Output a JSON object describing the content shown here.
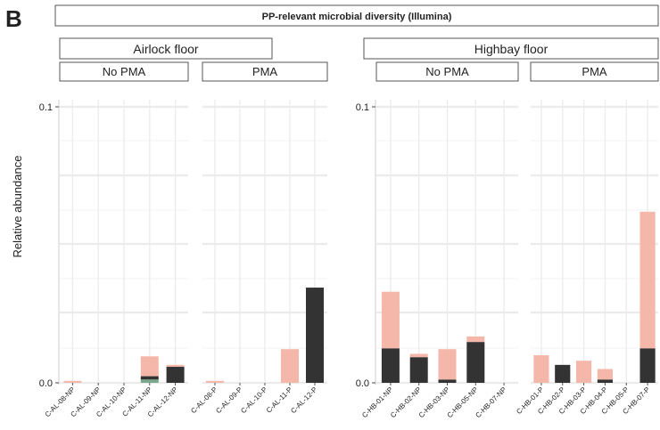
{
  "panel_label": "B",
  "title": "PP-relevant microbial diversity (Illumina)",
  "ylabel": "Relative abundance",
  "colors": {
    "pink": "#f4b7aa",
    "dark": "#333333",
    "green": "#7aa88f",
    "grid": "#ebebeb",
    "strip_border": "#555555"
  },
  "chart_data": {
    "type": "bar",
    "stacked": true,
    "y_scale": "stretched",
    "ylim": [
      0,
      0.1
    ],
    "yticks": [
      "0.0",
      "0.1"
    ],
    "grid": true,
    "groups": [
      {
        "name": "Airlock floor",
        "facets": [
          {
            "name": "No PMA",
            "categories": [
              "C-AL-08-NP",
              "C-AL-09-NP",
              "C-AL-10-NP",
              "C-AL-11-NP",
              "C-AL-12-NP"
            ],
            "stacks": [
              [
                {
                  "color": "pink",
                  "value": 0.0007
                }
              ],
              [],
              [],
              [
                {
                  "color": "green",
                  "value": 0.0012
                },
                {
                  "color": "dark",
                  "value": 0.0012
                },
                {
                  "color": "pink",
                  "value": 0.0072
                }
              ],
              [
                {
                  "color": "dark",
                  "value": 0.0058
                },
                {
                  "color": "pink",
                  "value": 0.0007
                }
              ]
            ]
          },
          {
            "name": "PMA",
            "categories": [
              "C-AL-08-P",
              "C-AL-09-P",
              "C-AL-10-P",
              "C-AL-11-P",
              "C-AL-12-P"
            ],
            "stacks": [
              [
                {
                  "color": "pink",
                  "value": 0.0007
                }
              ],
              [],
              [],
              [
                {
                  "color": "pink",
                  "value": 0.0122
                }
              ],
              [
                {
                  "color": "dark",
                  "value": 0.0345
                }
              ]
            ]
          }
        ]
      },
      {
        "name": "Highbay floor",
        "facets": [
          {
            "name": "No PMA",
            "categories": [
              "C-HB-01-NP",
              "C-HB-02-NP",
              "C-HB-03-NP",
              "C-HB-05-NP",
              "C-HB-07-NP"
            ],
            "stacks": [
              [
                {
                  "color": "dark",
                  "value": 0.0125
                },
                {
                  "color": "pink",
                  "value": 0.0205
                }
              ],
              [
                {
                  "color": "dark",
                  "value": 0.0093
                },
                {
                  "color": "pink",
                  "value": 0.0012
                }
              ],
              [
                {
                  "color": "dark",
                  "value": 0.0012
                },
                {
                  "color": "pink",
                  "value": 0.011
                }
              ],
              [
                {
                  "color": "dark",
                  "value": 0.0148
                },
                {
                  "color": "pink",
                  "value": 0.002
                }
              ],
              []
            ]
          },
          {
            "name": "PMA",
            "categories": [
              "C-HB-01-P",
              "C-HB-02-P",
              "C-HB-03-P",
              "C-HB-04-P",
              "C-HB-05-P",
              "C-HB-07-P"
            ],
            "stacks": [
              [
                {
                  "color": "pink",
                  "value": 0.01
                }
              ],
              [
                {
                  "color": "dark",
                  "value": 0.0065
                }
              ],
              [
                {
                  "color": "pink",
                  "value": 0.008
                }
              ],
              [
                {
                  "color": "dark",
                  "value": 0.0012
                },
                {
                  "color": "pink",
                  "value": 0.0038
                }
              ],
              [],
              [
                {
                  "color": "dark",
                  "value": 0.0125
                },
                {
                  "color": "pink",
                  "value": 0.0495
                }
              ]
            ]
          }
        ]
      }
    ]
  }
}
